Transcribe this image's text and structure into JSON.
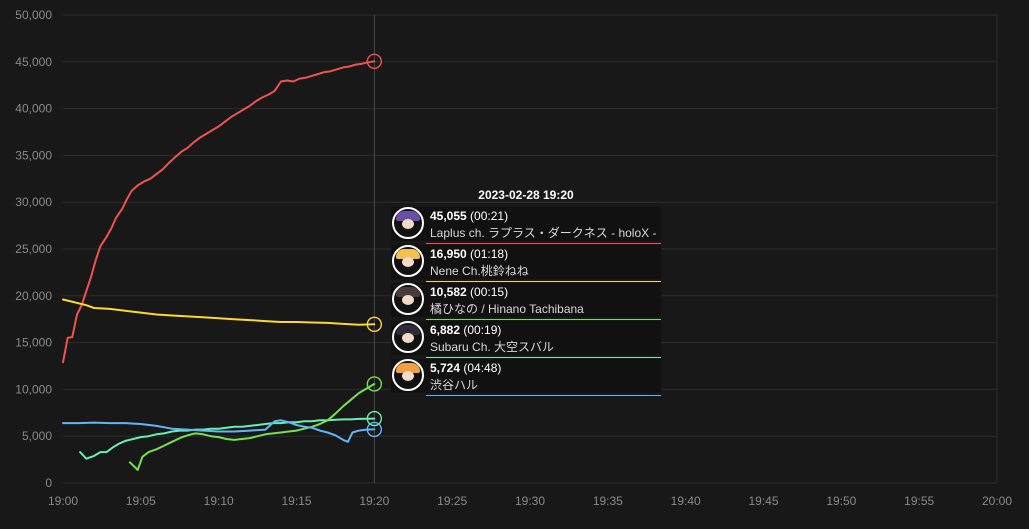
{
  "chart_data": {
    "type": "line",
    "title": "",
    "xlabel": "",
    "ylabel": "",
    "x_ticks": [
      "19:00",
      "19:05",
      "19:10",
      "19:15",
      "19:20",
      "19:25",
      "19:30",
      "19:35",
      "19:40",
      "19:45",
      "19:50",
      "19:55",
      "20:00"
    ],
    "xlim": [
      0,
      60
    ],
    "ylim": [
      0,
      50000
    ],
    "y_ticks": [
      0,
      5000,
      10000,
      15000,
      20000,
      25000,
      30000,
      35000,
      40000,
      45000,
      50000
    ],
    "y_tick_labels": [
      "0",
      "5,000",
      "10,000",
      "15,000",
      "20,000",
      "25,000",
      "30,000",
      "35,000",
      "40,000",
      "45,000",
      "50,000"
    ],
    "grid": true,
    "crosshair_x": 20,
    "series": [
      {
        "color": "#ef5350",
        "points": [
          [
            0,
            12900
          ],
          [
            0.3,
            15500
          ],
          [
            0.6,
            15600
          ],
          [
            0.9,
            18000
          ],
          [
            1.2,
            19000
          ],
          [
            1.5,
            20500
          ],
          [
            1.8,
            22000
          ],
          [
            2.1,
            23800
          ],
          [
            2.4,
            25300
          ],
          [
            2.8,
            26300
          ],
          [
            3.1,
            27200
          ],
          [
            3.4,
            28300
          ],
          [
            3.8,
            29300
          ],
          [
            4.1,
            30300
          ],
          [
            4.4,
            31200
          ],
          [
            4.8,
            31800
          ],
          [
            5.2,
            32200
          ],
          [
            5.6,
            32500
          ],
          [
            6.0,
            33000
          ],
          [
            6.4,
            33500
          ],
          [
            6.8,
            34200
          ],
          [
            7.2,
            34800
          ],
          [
            7.6,
            35400
          ],
          [
            8.0,
            35800
          ],
          [
            8.4,
            36400
          ],
          [
            8.8,
            36900
          ],
          [
            9.2,
            37300
          ],
          [
            9.6,
            37700
          ],
          [
            10.0,
            38100
          ],
          [
            10.4,
            38600
          ],
          [
            10.8,
            39100
          ],
          [
            11.2,
            39500
          ],
          [
            11.6,
            39900
          ],
          [
            12.0,
            40300
          ],
          [
            12.4,
            40800
          ],
          [
            12.8,
            41200
          ],
          [
            13.2,
            41500
          ],
          [
            13.6,
            41900
          ],
          [
            14.0,
            42900
          ],
          [
            14.4,
            43000
          ],
          [
            14.8,
            42900
          ],
          [
            15.2,
            43200
          ],
          [
            15.6,
            43300
          ],
          [
            16.0,
            43500
          ],
          [
            16.4,
            43700
          ],
          [
            16.8,
            43900
          ],
          [
            17.2,
            44000
          ],
          [
            17.6,
            44200
          ],
          [
            18.0,
            44400
          ],
          [
            18.4,
            44500
          ],
          [
            18.8,
            44700
          ],
          [
            19.2,
            44800
          ],
          [
            19.6,
            44950
          ],
          [
            20.0,
            45055
          ]
        ]
      },
      {
        "color": "#fdd835",
        "points": [
          [
            0,
            19600
          ],
          [
            0.5,
            19400
          ],
          [
            1,
            19200
          ],
          [
            1.5,
            19000
          ],
          [
            2,
            18700
          ],
          [
            3,
            18600
          ],
          [
            4,
            18400
          ],
          [
            5,
            18200
          ],
          [
            6,
            18000
          ],
          [
            7,
            17900
          ],
          [
            8,
            17800
          ],
          [
            9,
            17700
          ],
          [
            10,
            17600
          ],
          [
            11,
            17500
          ],
          [
            12,
            17400
          ],
          [
            13,
            17300
          ],
          [
            14,
            17200
          ],
          [
            15,
            17200
          ],
          [
            16,
            17150
          ],
          [
            17,
            17100
          ],
          [
            18,
            17000
          ],
          [
            19,
            16900
          ],
          [
            20,
            16950
          ]
        ]
      },
      {
        "color": "#69f0ae",
        "points": [
          [
            1.1,
            3300
          ],
          [
            1.5,
            2600
          ],
          [
            2.0,
            2900
          ],
          [
            2.4,
            3300
          ],
          [
            2.8,
            3300
          ],
          [
            3.2,
            3800
          ],
          [
            3.6,
            4200
          ],
          [
            4.0,
            4500
          ],
          [
            4.5,
            4700
          ],
          [
            5.0,
            4900
          ],
          [
            5.5,
            5000
          ],
          [
            6.0,
            5200
          ],
          [
            6.5,
            5300
          ],
          [
            7.0,
            5500
          ],
          [
            7.5,
            5600
          ],
          [
            8.0,
            5600
          ],
          [
            8.5,
            5700
          ],
          [
            9.0,
            5700
          ],
          [
            9.5,
            5800
          ],
          [
            10.0,
            5800
          ],
          [
            10.5,
            5900
          ],
          [
            11.0,
            6000
          ],
          [
            11.5,
            6000
          ],
          [
            12.0,
            6100
          ],
          [
            12.5,
            6200
          ],
          [
            13.0,
            6300
          ],
          [
            13.5,
            6400
          ],
          [
            14.0,
            6400
          ],
          [
            14.5,
            6500
          ],
          [
            15.0,
            6500
          ],
          [
            15.5,
            6600
          ],
          [
            16.0,
            6600
          ],
          [
            16.5,
            6700
          ],
          [
            17.0,
            6700
          ],
          [
            17.5,
            6750
          ],
          [
            18.0,
            6800
          ],
          [
            18.5,
            6800
          ],
          [
            19.0,
            6850
          ],
          [
            19.5,
            6870
          ],
          [
            20.0,
            6882
          ]
        ]
      },
      {
        "color": "#76e050",
        "points": [
          [
            4.3,
            2200
          ],
          [
            4.8,
            1400
          ],
          [
            5.1,
            2800
          ],
          [
            5.5,
            3300
          ],
          [
            6.0,
            3600
          ],
          [
            6.5,
            4000
          ],
          [
            7.0,
            4400
          ],
          [
            7.5,
            4800
          ],
          [
            8.0,
            5100
          ],
          [
            8.5,
            5300
          ],
          [
            9.0,
            5200
          ],
          [
            9.5,
            5000
          ],
          [
            10.0,
            4900
          ],
          [
            10.5,
            4700
          ],
          [
            11.0,
            4600
          ],
          [
            11.5,
            4700
          ],
          [
            12.0,
            4800
          ],
          [
            12.5,
            5000
          ],
          [
            13.0,
            5200
          ],
          [
            13.5,
            5300
          ],
          [
            14.0,
            5400
          ],
          [
            14.5,
            5500
          ],
          [
            15.0,
            5600
          ],
          [
            15.5,
            5800
          ],
          [
            16.0,
            6000
          ],
          [
            16.5,
            6300
          ],
          [
            17.0,
            6700
          ],
          [
            17.5,
            7400
          ],
          [
            18.0,
            8200
          ],
          [
            18.5,
            8900
          ],
          [
            19.0,
            9600
          ],
          [
            19.5,
            10100
          ],
          [
            20.0,
            10582
          ]
        ]
      },
      {
        "color": "#64b5f6",
        "points": [
          [
            0,
            6400
          ],
          [
            1,
            6400
          ],
          [
            2,
            6450
          ],
          [
            3,
            6400
          ],
          [
            4,
            6400
          ],
          [
            5,
            6300
          ],
          [
            6,
            6100
          ],
          [
            7,
            5800
          ],
          [
            8,
            5700
          ],
          [
            9,
            5600
          ],
          [
            10,
            5500
          ],
          [
            11,
            5500
          ],
          [
            12,
            5600
          ],
          [
            13,
            5700
          ],
          [
            13.6,
            6600
          ],
          [
            14.0,
            6700
          ],
          [
            14.5,
            6500
          ],
          [
            15.0,
            6200
          ],
          [
            15.5,
            6000
          ],
          [
            16.0,
            5900
          ],
          [
            16.5,
            5600
          ],
          [
            17.0,
            5400
          ],
          [
            17.5,
            5100
          ],
          [
            18.0,
            4600
          ],
          [
            18.3,
            4400
          ],
          [
            18.6,
            5400
          ],
          [
            19.0,
            5600
          ],
          [
            19.5,
            5700
          ],
          [
            20.0,
            5724
          ]
        ]
      }
    ]
  },
  "tooltip": {
    "date": "2023-02-28 19:20",
    "rows": [
      {
        "value": "45,055",
        "time": "(00:21)",
        "name": "Laplus ch. ラプラス・ダークネス - holoX -",
        "color": "#ef5350",
        "hair": "#6a4fa8"
      },
      {
        "value": "16,950",
        "time": "(01:18)",
        "name": "Nene Ch.桃鈴ねね",
        "color": "#fdd835",
        "hair": "#f2c14e"
      },
      {
        "value": "10,582",
        "time": "(00:15)",
        "name": "橘ひなの / Hinano Tachibana",
        "color": "#76e050",
        "hair": "#4a3a3a"
      },
      {
        "value": "6,882",
        "time": "(00:19)",
        "name": "Subaru Ch. 大空スバル",
        "color": "#69f0ae",
        "hair": "#2e2a3a"
      },
      {
        "value": "5,724",
        "time": "(04:48)",
        "name": "渋谷ハル",
        "color": "#64b5f6",
        "hair": "#f0a040"
      }
    ]
  }
}
